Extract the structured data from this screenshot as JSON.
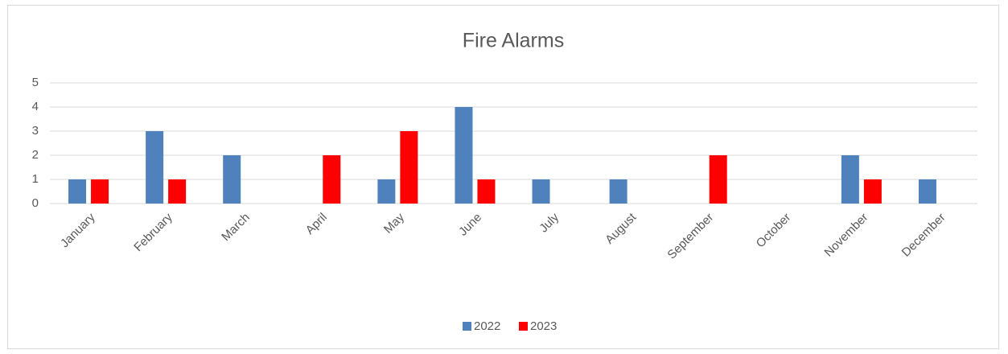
{
  "chart_data": {
    "type": "bar",
    "title": "Fire Alarms",
    "categories": [
      "January",
      "February",
      "March",
      "April",
      "May",
      "June",
      "July",
      "August",
      "September",
      "October",
      "November",
      "December"
    ],
    "series": [
      {
        "name": "2022",
        "color": "#4f81bd",
        "values": [
          1,
          3,
          2,
          0,
          1,
          4,
          1,
          1,
          0,
          0,
          2,
          1
        ]
      },
      {
        "name": "2023",
        "color": "#ff0000",
        "values": [
          1,
          1,
          0,
          2,
          3,
          1,
          0,
          0,
          2,
          0,
          1,
          0
        ]
      }
    ],
    "ylim": [
      0,
      5
    ],
    "yticks": [
      0,
      1,
      2,
      3,
      4,
      5
    ],
    "grid": true,
    "legend": "bottom"
  }
}
